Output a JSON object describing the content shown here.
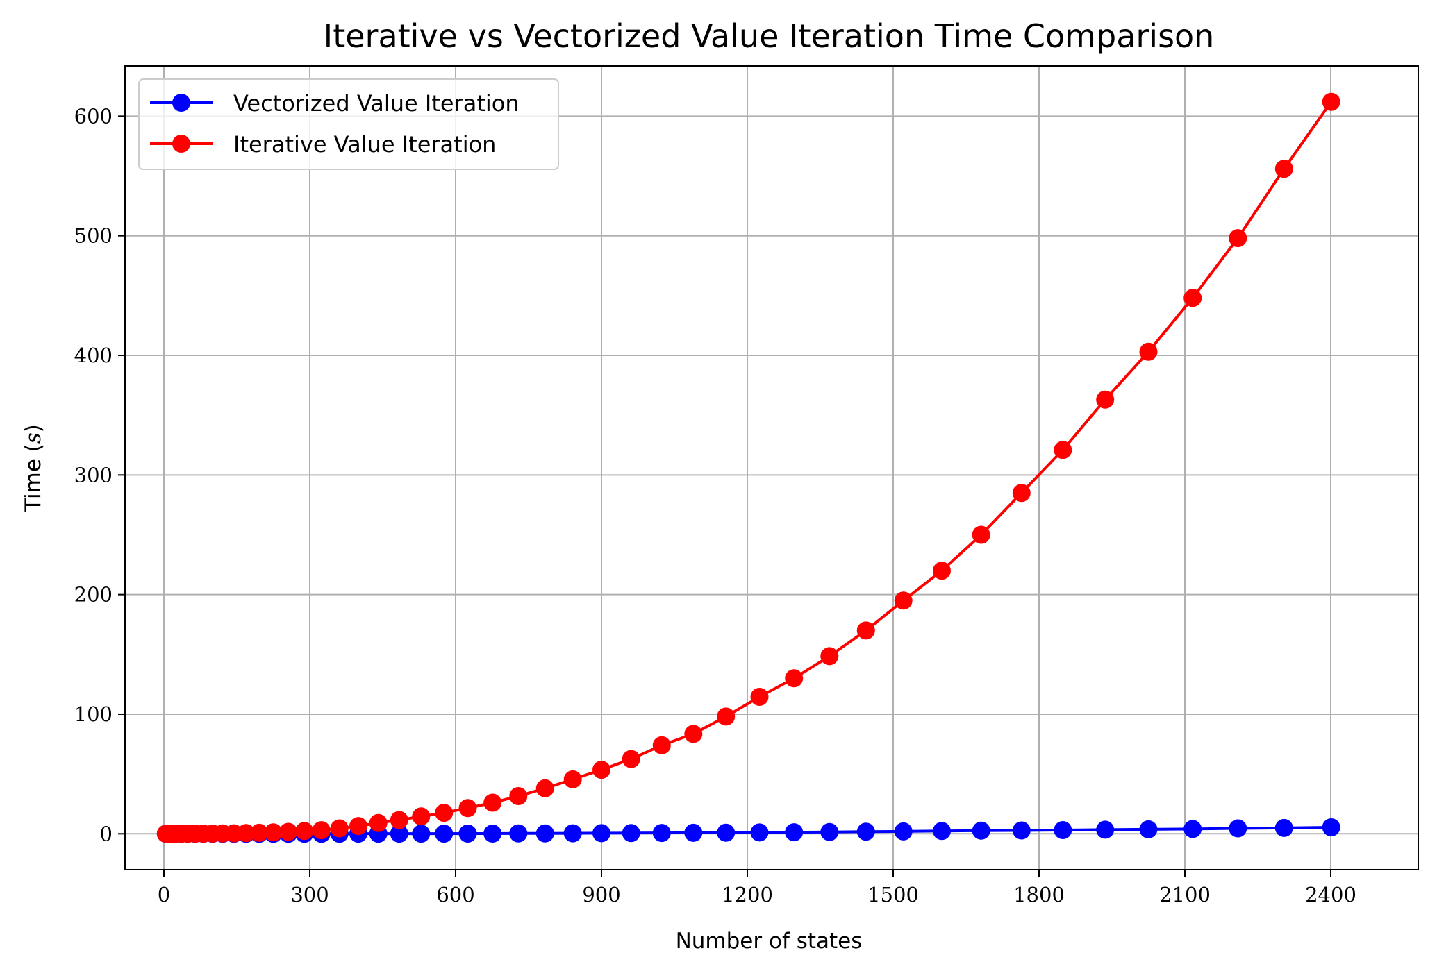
{
  "chart_data": {
    "type": "line",
    "title": "Iterative vs Vectorized Value Iteration Time Comparison",
    "xlabel": "Number of states",
    "ylabel_text": "Time (",
    "ylabel_var": "s",
    "ylabel_close": ")",
    "xlim": [
      -80,
      2580
    ],
    "ylim": [
      -30,
      642
    ],
    "xticks": [
      0,
      300,
      600,
      900,
      1200,
      1500,
      1800,
      2100,
      2400
    ],
    "yticks": [
      0,
      100,
      200,
      300,
      400,
      500,
      600
    ],
    "grid": true,
    "legend_position": "top-left",
    "x": [
      4,
      9,
      16,
      25,
      36,
      49,
      64,
      81,
      100,
      121,
      144,
      169,
      196,
      225,
      256,
      289,
      324,
      361,
      400,
      441,
      484,
      529,
      576,
      625,
      676,
      729,
      784,
      841,
      900,
      961,
      1024,
      1089,
      1156,
      1225,
      1296,
      1369,
      1444,
      1521,
      1600,
      1681,
      1764,
      1849,
      1936,
      2025,
      2116,
      2209,
      2304,
      2401
    ],
    "series": [
      {
        "name": "Vectorized Value Iteration",
        "color": "#0000ff",
        "values": [
          0,
          0,
          0,
          0,
          0,
          0,
          0,
          0,
          0,
          0,
          0,
          0,
          0,
          0,
          0,
          0,
          0,
          0.05,
          0.1,
          0.1,
          0.1,
          0.1,
          0.1,
          0.2,
          0.2,
          0.3,
          0.3,
          0.4,
          0.5,
          0.6,
          0.7,
          0.8,
          0.9,
          1.1,
          1.3,
          1.5,
          1.8,
          2.0,
          2.3,
          2.6,
          2.8,
          3.1,
          3.4,
          3.7,
          4.0,
          4.5,
          4.9,
          5.4
        ]
      },
      {
        "name": "Iterative Value Iteration",
        "color": "#ff0000",
        "values": [
          0,
          0,
          0,
          0,
          0,
          0,
          0.1,
          0.1,
          0.2,
          0.3,
          0.4,
          0.6,
          0.8,
          1.2,
          1.6,
          2.3,
          3.0,
          4.5,
          6.5,
          9.0,
          11.5,
          14.5,
          17.5,
          21.5,
          26.0,
          31.5,
          38.0,
          45.5,
          53.5,
          62.5,
          74.0,
          83.5,
          98.0,
          114.5,
          130.0,
          148.5,
          170.0,
          195.0,
          220.0,
          250.0,
          285.0,
          321.0,
          363.0,
          403.0,
          448.0,
          498.0,
          556.0,
          612.0
        ]
      }
    ]
  }
}
